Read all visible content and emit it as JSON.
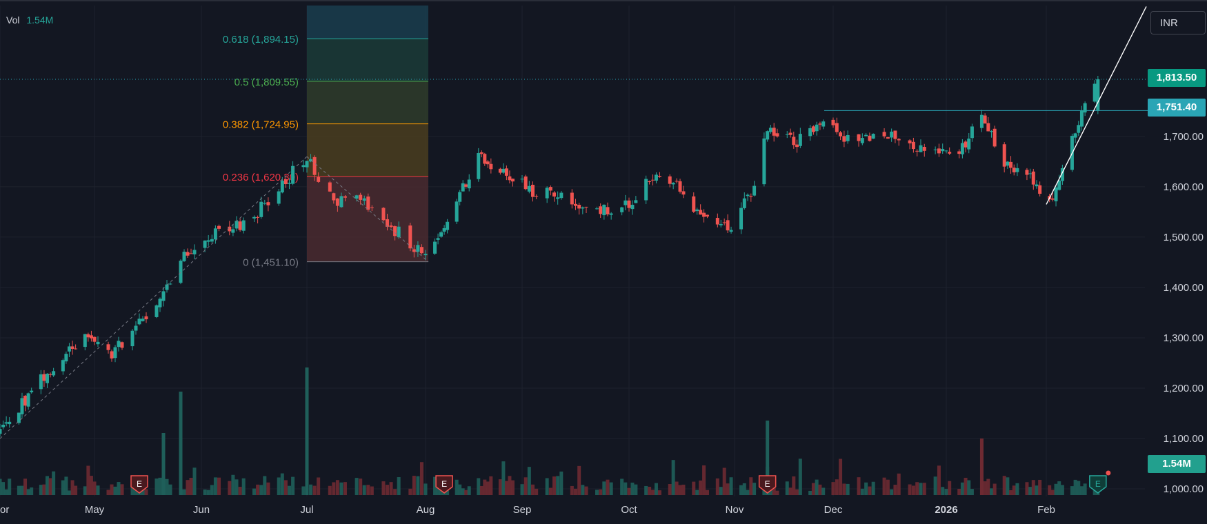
{
  "legend": {
    "volume_label": "Vol",
    "volume_value": "1.54M"
  },
  "currency_button": "INR",
  "price_tags": {
    "last_price": "1,813.50",
    "level_price": "1,751.40",
    "volume": "1.54M"
  },
  "colors": {
    "background": "#131722",
    "grid": "#1e222d",
    "up": "#26a69a",
    "down": "#ef5350",
    "axis_text": "#d1d4dc",
    "level_line": "#2aa5b5",
    "trend_line": "#ffffff",
    "dotted": "#2aa5b5"
  },
  "icons": {
    "earnings_marker": "E",
    "earnings_names": [
      "earnings-icon"
    ]
  },
  "chart_data": {
    "type": "candlestick",
    "title": "",
    "price_axis": {
      "ticks": [
        1000,
        1100,
        1200,
        1300,
        1400,
        1500,
        1600,
        1700
      ],
      "tick_labels": [
        "1,000.00",
        "1,100.00",
        "1,200.00",
        "1,300.00",
        "1,400.00",
        "1,500.00",
        "1,600.00",
        "1,700.00"
      ],
      "range": [
        985,
        1960
      ]
    },
    "time_axis": {
      "labels": [
        "or",
        "May",
        "Jun",
        "Jul",
        "Aug",
        "Sep",
        "Oct",
        "Nov",
        "Dec",
        "2026",
        "Feb"
      ],
      "bold_labels": [
        "2026"
      ]
    },
    "fibonacci": {
      "anchor_high": 1894.15,
      "anchor_low": 1451.1,
      "levels": [
        {
          "label": "0.618 (1,894.15)",
          "price": 1894.15,
          "color": "#26a69a"
        },
        {
          "label": "0.5 (1,809.55)",
          "price": 1809.55,
          "color": "#4caf50"
        },
        {
          "label": "0.382 (1,724.95)",
          "price": 1724.95,
          "color": "#ff9800"
        },
        {
          "label": "0.236 (1,620.30)",
          "price": 1620.3,
          "color": "#f23645"
        },
        {
          "label": "0 (1,451.10)",
          "price": 1451.1,
          "color": "#787b86"
        }
      ]
    },
    "horizontal_level": {
      "price": 1751.4
    },
    "last_price": 1813.5,
    "close_series_anchors": [
      {
        "date": "2025-04-01",
        "close": 1110
      },
      {
        "date": "2025-04-15",
        "close": 1225
      },
      {
        "date": "2025-04-28",
        "close": 1300
      },
      {
        "date": "2025-05-06",
        "close": 1270
      },
      {
        "date": "2025-05-12",
        "close": 1310
      },
      {
        "date": "2025-05-20",
        "close": 1370
      },
      {
        "date": "2025-05-28",
        "close": 1470
      },
      {
        "date": "2025-06-05",
        "close": 1510
      },
      {
        "date": "2025-06-15",
        "close": 1530
      },
      {
        "date": "2025-06-23",
        "close": 1600
      },
      {
        "date": "2025-07-01",
        "close": 1655
      },
      {
        "date": "2025-07-08",
        "close": 1575
      },
      {
        "date": "2025-07-16",
        "close": 1570
      },
      {
        "date": "2025-07-22",
        "close": 1530
      },
      {
        "date": "2025-08-01",
        "close": 1460
      },
      {
        "date": "2025-08-08",
        "close": 1535
      },
      {
        "date": "2025-08-18",
        "close": 1655
      },
      {
        "date": "2025-08-28",
        "close": 1625
      },
      {
        "date": "2025-09-03",
        "close": 1595
      },
      {
        "date": "2025-09-15",
        "close": 1575
      },
      {
        "date": "2025-09-22",
        "close": 1555
      },
      {
        "date": "2025-10-01",
        "close": 1560
      },
      {
        "date": "2025-10-06",
        "close": 1620
      },
      {
        "date": "2025-10-15",
        "close": 1600
      },
      {
        "date": "2025-10-22",
        "close": 1550
      },
      {
        "date": "2025-10-31",
        "close": 1520
      },
      {
        "date": "2025-11-07",
        "close": 1600
      },
      {
        "date": "2025-11-11",
        "close": 1720
      },
      {
        "date": "2025-11-20",
        "close": 1690
      },
      {
        "date": "2025-11-28",
        "close": 1735
      },
      {
        "date": "2025-12-06",
        "close": 1690
      },
      {
        "date": "2025-12-15",
        "close": 1700
      },
      {
        "date": "2025-12-24",
        "close": 1680
      },
      {
        "date": "2026-01-05",
        "close": 1670
      },
      {
        "date": "2026-01-12",
        "close": 1735
      },
      {
        "date": "2026-01-20",
        "close": 1640
      },
      {
        "date": "2026-01-28",
        "close": 1610
      },
      {
        "date": "2026-02-03",
        "close": 1575
      },
      {
        "date": "2026-02-10",
        "close": 1710
      },
      {
        "date": "2026-02-17",
        "close": 1813.5
      }
    ],
    "earnings_dates": [
      "2025-05-14",
      "2025-08-07",
      "2025-11-11",
      "2026-02-17"
    ],
    "grid": true
  }
}
